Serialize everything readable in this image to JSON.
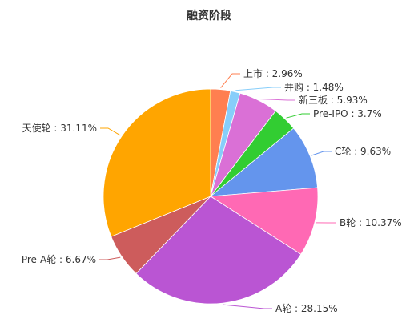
{
  "chart_data": {
    "type": "pie",
    "title": "融资阶段",
    "slices": [
      {
        "label": "上市",
        "value": 2.96,
        "display": "上市 : 2.96%",
        "color": "#ff7f50"
      },
      {
        "label": "并购",
        "value": 1.48,
        "display": "并购 : 1.48%",
        "color": "#87cefa"
      },
      {
        "label": "新三板",
        "value": 5.93,
        "display": "新三板 : 5.93%",
        "color": "#da70d6"
      },
      {
        "label": "Pre-IPO",
        "value": 3.7,
        "display": "Pre-IPO : 3.7%",
        "color": "#32cd32"
      },
      {
        "label": "C轮",
        "value": 9.63,
        "display": "C轮 : 9.63%",
        "color": "#6495ed"
      },
      {
        "label": "B轮",
        "value": 10.37,
        "display": "B轮 : 10.37%",
        "color": "#ff69b4"
      },
      {
        "label": "A轮",
        "value": 28.15,
        "display": "A轮 : 28.15%",
        "color": "#ba55d3"
      },
      {
        "label": "Pre-A轮",
        "value": 6.67,
        "display": "Pre-A轮 : 6.67%",
        "color": "#cd5c5c"
      },
      {
        "label": "天使轮",
        "value": 31.11,
        "display": "天使轮 : 31.11%",
        "color": "#ffa500"
      }
    ]
  }
}
